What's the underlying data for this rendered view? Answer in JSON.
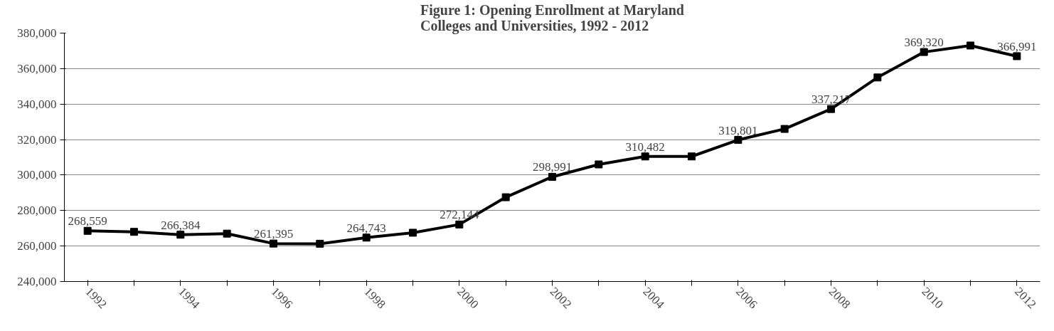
{
  "chart_data": {
    "type": "line",
    "title": "Figure 1: Opening Enrollment at Maryland Colleges and Universities, 1992 - 2012",
    "categories": [
      "1992",
      null,
      "1994",
      null,
      "1996",
      null,
      "1998",
      null,
      "2000",
      null,
      "2002",
      null,
      "2004",
      null,
      "2006",
      null,
      "2008",
      null,
      "2010",
      null,
      "2012"
    ],
    "series": [
      {
        "color": "#000000",
        "values": [
          268559,
          268000,
          266384,
          267000,
          261395,
          261300,
          264743,
          267500,
          272144,
          287500,
          298991,
          306000,
          310482,
          310500,
          319801,
          326000,
          337217,
          355000,
          369320,
          373000,
          366991
        ],
        "value_labels": [
          "268,559",
          null,
          "266,384",
          null,
          "261,395",
          null,
          "264,743",
          null,
          "272,144",
          null,
          "298,991",
          null,
          "310,482",
          null,
          "319,801",
          null,
          "337,217",
          null,
          "369,320",
          null,
          "366,991"
        ]
      }
    ],
    "ylim": [
      240000,
      380000
    ],
    "yticks": [
      {
        "value": 240000,
        "label": "240,000"
      },
      {
        "value": 260000,
        "label": "260,000"
      },
      {
        "value": 280000,
        "label": "280,000"
      },
      {
        "value": 300000,
        "label": "300,000"
      },
      {
        "value": 320000,
        "label": "320,000"
      },
      {
        "value": 340000,
        "label": "340,000"
      },
      {
        "value": 360000,
        "label": "360,000"
      },
      {
        "value": 380000,
        "label": "380,000"
      }
    ],
    "grid": "y",
    "marker": "square",
    "line_style": "solid"
  }
}
